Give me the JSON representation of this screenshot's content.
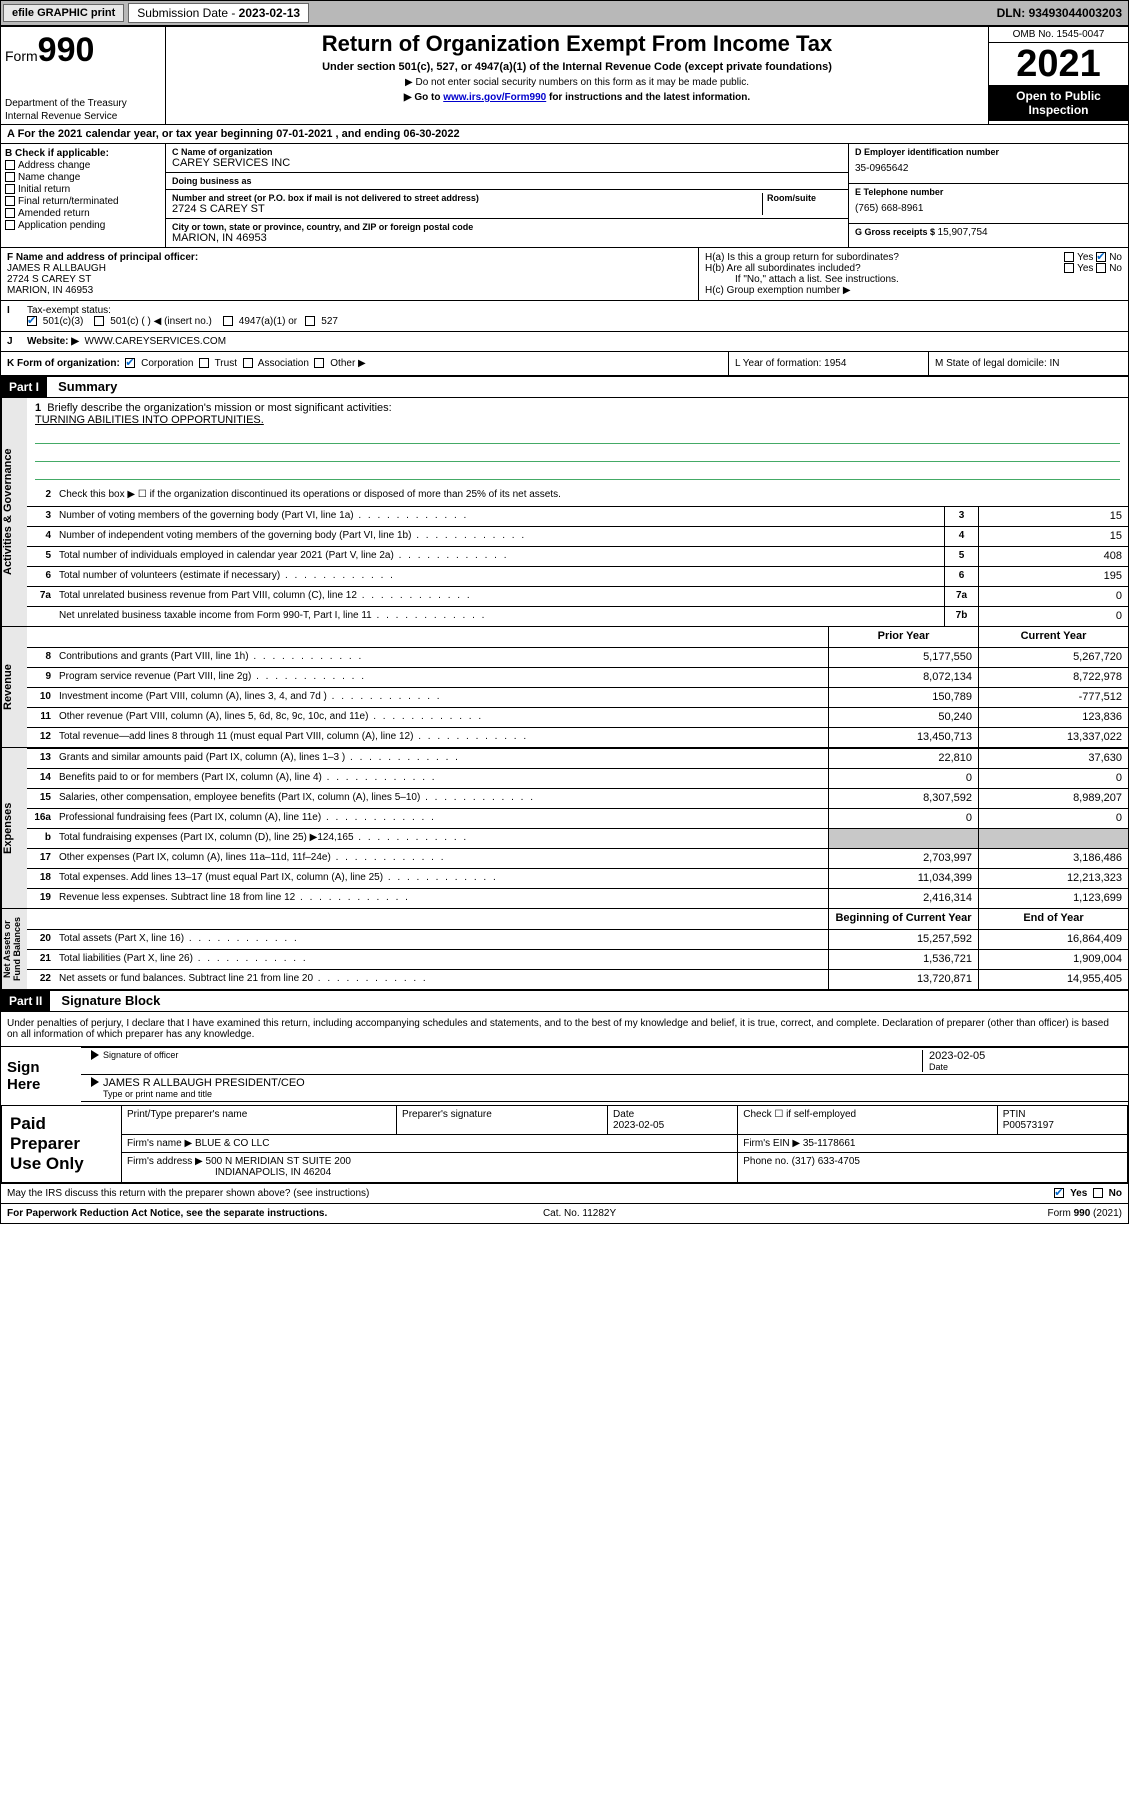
{
  "topbar": {
    "efile": "efile GRAPHIC print",
    "subdate_lbl": "Submission Date - ",
    "subdate": "2023-02-13",
    "dln_lbl": "DLN: ",
    "dln": "93493044003203"
  },
  "header": {
    "form_word": "Form",
    "form_num": "990",
    "dept": "Department of the Treasury",
    "irs": "Internal Revenue Service",
    "title": "Return of Organization Exempt From Income Tax",
    "sub": "Under section 501(c), 527, or 4947(a)(1) of the Internal Revenue Code (except private foundations)",
    "note1": "▶ Do not enter social security numbers on this form as it may be made public.",
    "note2_pre": "▶ Go to ",
    "note2_link": "www.irs.gov/Form990",
    "note2_post": " for instructions and the latest information.",
    "omb": "OMB No. 1545-0047",
    "year": "2021",
    "inspect": "Open to Public Inspection"
  },
  "rowA": {
    "text": "A For the 2021 calendar year, or tax year beginning 07-01-2021   , and ending 06-30-2022"
  },
  "colB": {
    "hdr": "B Check if applicable:",
    "opts": [
      "Address change",
      "Name change",
      "Initial return",
      "Final return/terminated",
      "Amended return",
      "Application pending"
    ]
  },
  "colC": {
    "name_lbl": "C Name of organization",
    "name": "CAREY SERVICES INC",
    "dba_lbl": "Doing business as",
    "dba": "",
    "addr_lbl": "Number and street (or P.O. box if mail is not delivered to street address)",
    "room_lbl": "Room/suite",
    "addr": "2724 S CAREY ST",
    "city_lbl": "City or town, state or province, country, and ZIP or foreign postal code",
    "city": "MARION, IN  46953"
  },
  "colD": {
    "ein_lbl": "D Employer identification number",
    "ein": "35-0965642",
    "tel_lbl": "E Telephone number",
    "tel": "(765) 668-8961",
    "gross_lbl": "G Gross receipts $ ",
    "gross": "15,907,754"
  },
  "rowF": {
    "lbl": "F  Name and address of principal officer:",
    "name": "JAMES R ALLBAUGH",
    "addr1": "2724 S CAREY ST",
    "addr2": "MARION, IN  46953"
  },
  "rowH": {
    "ha": "H(a)  Is this a group return for subordinates?",
    "hb": "H(b)  Are all subordinates included?",
    "hb2": "If \"No,\" attach a list. See instructions.",
    "hc": "H(c)  Group exemption number ▶",
    "yes": "Yes",
    "no": "No"
  },
  "rowI": {
    "lbl": "Tax-exempt status:",
    "o1": "501(c)(3)",
    "o2": "501(c) (  ) ◀ (insert no.)",
    "o3": "4947(a)(1) or",
    "o4": "527"
  },
  "rowJ": {
    "lbl": "Website: ▶",
    "val": "WWW.CAREYSERVICES.COM"
  },
  "rowK": {
    "lbl": "K Form of organization:",
    "o1": "Corporation",
    "o2": "Trust",
    "o3": "Association",
    "o4": "Other ▶",
    "L": "L Year of formation: 1954",
    "M": "M State of legal domicile: IN"
  },
  "part1": {
    "hdr": "Part I",
    "title": "Summary",
    "q1": "Briefly describe the organization's mission or most significant activities:",
    "mission": "TURNING ABILITIES INTO OPPORTUNITIES.",
    "q2": "Check this box ▶ ☐  if the organization discontinued its operations or disposed of more than 25% of its net assets.",
    "lines_gov": [
      {
        "n": "3",
        "d": "Number of voting members of the governing body (Part VI, line 1a)",
        "box": "3",
        "v": "15"
      },
      {
        "n": "4",
        "d": "Number of independent voting members of the governing body (Part VI, line 1b)",
        "box": "4",
        "v": "15"
      },
      {
        "n": "5",
        "d": "Total number of individuals employed in calendar year 2021 (Part V, line 2a)",
        "box": "5",
        "v": "408"
      },
      {
        "n": "6",
        "d": "Total number of volunteers (estimate if necessary)",
        "box": "6",
        "v": "195"
      },
      {
        "n": "7a",
        "d": "Total unrelated business revenue from Part VIII, column (C), line 12",
        "box": "7a",
        "v": "0"
      },
      {
        "n": "",
        "d": "Net unrelated business taxable income from Form 990-T, Part I, line 11",
        "box": "7b",
        "v": "0"
      }
    ],
    "col_prior": "Prior Year",
    "col_curr": "Current Year",
    "col_beg": "Beginning of Current Year",
    "col_end": "End of Year",
    "rev": [
      {
        "n": "8",
        "d": "Contributions and grants (Part VIII, line 1h)",
        "p": "5,177,550",
        "c": "5,267,720"
      },
      {
        "n": "9",
        "d": "Program service revenue (Part VIII, line 2g)",
        "p": "8,072,134",
        "c": "8,722,978"
      },
      {
        "n": "10",
        "d": "Investment income (Part VIII, column (A), lines 3, 4, and 7d )",
        "p": "150,789",
        "c": "-777,512"
      },
      {
        "n": "11",
        "d": "Other revenue (Part VIII, column (A), lines 5, 6d, 8c, 9c, 10c, and 11e)",
        "p": "50,240",
        "c": "123,836"
      },
      {
        "n": "12",
        "d": "Total revenue—add lines 8 through 11 (must equal Part VIII, column (A), line 12)",
        "p": "13,450,713",
        "c": "13,337,022"
      }
    ],
    "exp": [
      {
        "n": "13",
        "d": "Grants and similar amounts paid (Part IX, column (A), lines 1–3 )",
        "p": "22,810",
        "c": "37,630"
      },
      {
        "n": "14",
        "d": "Benefits paid to or for members (Part IX, column (A), line 4)",
        "p": "0",
        "c": "0"
      },
      {
        "n": "15",
        "d": "Salaries, other compensation, employee benefits (Part IX, column (A), lines 5–10)",
        "p": "8,307,592",
        "c": "8,989,207"
      },
      {
        "n": "16a",
        "d": "Professional fundraising fees (Part IX, column (A), line 11e)",
        "p": "0",
        "c": "0"
      },
      {
        "n": "b",
        "d": "Total fundraising expenses (Part IX, column (D), line 25) ▶124,165",
        "p": "",
        "c": "",
        "grey": true
      },
      {
        "n": "17",
        "d": "Other expenses (Part IX, column (A), lines 11a–11d, 11f–24e)",
        "p": "2,703,997",
        "c": "3,186,486"
      },
      {
        "n": "18",
        "d": "Total expenses. Add lines 13–17 (must equal Part IX, column (A), line 25)",
        "p": "11,034,399",
        "c": "12,213,323"
      },
      {
        "n": "19",
        "d": "Revenue less expenses. Subtract line 18 from line 12",
        "p": "2,416,314",
        "c": "1,123,699"
      }
    ],
    "net": [
      {
        "n": "20",
        "d": "Total assets (Part X, line 16)",
        "p": "15,257,592",
        "c": "16,864,409"
      },
      {
        "n": "21",
        "d": "Total liabilities (Part X, line 26)",
        "p": "1,536,721",
        "c": "1,909,004"
      },
      {
        "n": "22",
        "d": "Net assets or fund balances. Subtract line 21 from line 20",
        "p": "13,720,871",
        "c": "14,955,405"
      }
    ]
  },
  "part2": {
    "hdr": "Part II",
    "title": "Signature Block",
    "decl": "Under penalties of perjury, I declare that I have examined this return, including accompanying schedules and statements, and to the best of my knowledge and belief, it is true, correct, and complete. Declaration of preparer (other than officer) is based on all information of which preparer has any knowledge.",
    "sign_here": "Sign Here",
    "sig_officer": "Signature of officer",
    "sig_date": "Date",
    "sig_date_v": "2023-02-05",
    "officer": "JAMES R ALLBAUGH  PRESIDENT/CEO",
    "type_name": "Type or print name and title",
    "paid": "Paid Preparer Use Only",
    "h_name": "Print/Type preparer's name",
    "h_sig": "Preparer's signature",
    "h_date": "Date",
    "h_date_v": "2023-02-05",
    "h_check": "Check ☐ if self-employed",
    "h_ptin": "PTIN",
    "ptin": "P00573197",
    "firm_name_lbl": "Firm's name    ▶",
    "firm_name": "BLUE & CO LLC",
    "firm_ein_lbl": "Firm's EIN ▶",
    "firm_ein": "35-1178661",
    "firm_addr_lbl": "Firm's address ▶",
    "firm_addr1": "500 N MERIDIAN ST SUITE 200",
    "firm_addr2": "INDIANAPOLIS, IN  46204",
    "phone_lbl": "Phone no.",
    "phone": "(317) 633-4705",
    "may": "May the IRS discuss this return with the preparer shown above? (see instructions)"
  },
  "footer": {
    "l": "For Paperwork Reduction Act Notice, see the separate instructions.",
    "m": "Cat. No. 11282Y",
    "r": "Form 990 (2021)"
  }
}
